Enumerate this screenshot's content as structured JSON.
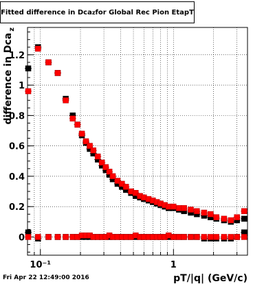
{
  "chart_data": {
    "type": "scatter",
    "title_main": "Fitted difference in Dca",
    "title_sub": "z",
    "title_tail": " for Global Rec Pion EtapT",
    "xlabel": "pT/|q| (GeV/c)",
    "ylabel": "difference in Dca",
    "ylabel_sub": "z",
    "x_scale": "log",
    "xlim": [
      0.08,
      3.6
    ],
    "ylim": [
      -0.12,
      1.38
    ],
    "grid": true,
    "x_major_ticks": [
      {
        "v": 0.1,
        "label": "10⁻¹"
      },
      {
        "v": 1,
        "label": "1"
      }
    ],
    "y_ticks": [
      {
        "v": 0,
        "label": "0"
      },
      {
        "v": 0.2,
        "label": "0.2"
      },
      {
        "v": 0.4,
        "label": "0.4"
      },
      {
        "v": 0.6,
        "label": "0.6"
      },
      {
        "v": 0.8,
        "label": "0.8"
      },
      {
        "v": 1,
        "label": "1"
      },
      {
        "v": 1.2,
        "label": "1.2"
      }
    ],
    "series": [
      {
        "color": "#000000",
        "marker": "square",
        "x": [
          0.081,
          0.096,
          0.115,
          0.135,
          0.155,
          0.175,
          0.19,
          0.205,
          0.22,
          0.235,
          0.25,
          0.27,
          0.29,
          0.31,
          0.33,
          0.35,
          0.38,
          0.41,
          0.44,
          0.48,
          0.52,
          0.56,
          0.6,
          0.65,
          0.7,
          0.75,
          0.8,
          0.86,
          0.92,
          1.0,
          1.1,
          1.2,
          1.35,
          1.5,
          1.7,
          1.9,
          2.1,
          2.4,
          2.7,
          3.0,
          3.4
        ],
        "y": [
          1.11,
          1.25,
          1.15,
          1.08,
          0.91,
          0.8,
          0.74,
          0.67,
          0.62,
          0.58,
          0.55,
          0.51,
          0.47,
          0.44,
          0.41,
          0.38,
          0.35,
          0.33,
          0.31,
          0.29,
          0.27,
          0.26,
          0.25,
          0.24,
          0.23,
          0.22,
          0.21,
          0.2,
          0.19,
          0.19,
          0.18,
          0.17,
          0.16,
          0.15,
          0.14,
          0.13,
          0.12,
          0.11,
          0.1,
          0.11,
          0.12
        ]
      },
      {
        "color": "#ff0000",
        "marker": "square",
        "x": [
          0.081,
          0.096,
          0.115,
          0.135,
          0.155,
          0.175,
          0.19,
          0.205,
          0.22,
          0.235,
          0.25,
          0.27,
          0.29,
          0.31,
          0.33,
          0.35,
          0.38,
          0.41,
          0.44,
          0.48,
          0.52,
          0.56,
          0.6,
          0.65,
          0.7,
          0.75,
          0.8,
          0.86,
          0.92,
          1.0,
          1.1,
          1.2,
          1.35,
          1.5,
          1.7,
          1.9,
          2.1,
          2.4,
          2.7,
          3.0,
          3.4
        ],
        "y": [
          0.96,
          1.24,
          1.15,
          1.08,
          0.9,
          0.78,
          0.74,
          0.68,
          0.63,
          0.6,
          0.57,
          0.53,
          0.49,
          0.46,
          0.43,
          0.4,
          0.37,
          0.35,
          0.33,
          0.3,
          0.29,
          0.27,
          0.26,
          0.25,
          0.24,
          0.23,
          0.22,
          0.21,
          0.2,
          0.2,
          0.19,
          0.19,
          0.18,
          0.17,
          0.16,
          0.15,
          0.13,
          0.12,
          0.11,
          0.13,
          0.17
        ]
      },
      {
        "color": "#000000",
        "marker": "square",
        "x": [
          0.081,
          0.096,
          0.115,
          0.135,
          0.155,
          0.175,
          0.19,
          0.205,
          0.22,
          0.235,
          0.25,
          0.27,
          0.29,
          0.31,
          0.33,
          0.35,
          0.38,
          0.41,
          0.44,
          0.48,
          0.52,
          0.56,
          0.6,
          0.65,
          0.7,
          0.75,
          0.8,
          0.86,
          0.92,
          1.0,
          1.1,
          1.2,
          1.35,
          1.5,
          1.7,
          1.9,
          2.1,
          2.4,
          2.7,
          3.0,
          3.4
        ],
        "y": [
          0.03,
          -0.01,
          0.0,
          0.0,
          0.0,
          0.0,
          0.0,
          0.0,
          0.0,
          0.0,
          0.0,
          0.0,
          0.0,
          0.0,
          0.0,
          0.0,
          0.0,
          0.0,
          0.0,
          0.0,
          0.0,
          0.0,
          0.0,
          0.0,
          0.0,
          0.0,
          0.0,
          0.0,
          0.0,
          0.0,
          0.0,
          0.0,
          0.0,
          0.0,
          -0.01,
          -0.01,
          -0.01,
          -0.01,
          -0.01,
          0.0,
          0.03
        ]
      },
      {
        "color": "#ff0000",
        "marker": "square",
        "x": [
          0.081,
          0.096,
          0.115,
          0.135,
          0.155,
          0.175,
          0.19,
          0.205,
          0.22,
          0.235,
          0.25,
          0.27,
          0.29,
          0.31,
          0.33,
          0.35,
          0.38,
          0.41,
          0.44,
          0.48,
          0.52,
          0.56,
          0.6,
          0.65,
          0.7,
          0.75,
          0.8,
          0.86,
          0.92,
          1.0,
          1.1,
          1.2,
          1.35,
          1.5,
          1.7,
          1.9,
          2.1,
          2.4,
          2.7,
          3.0,
          3.4
        ],
        "y": [
          0.0,
          0.0,
          0.0,
          0.0,
          0.0,
          0.0,
          0.0,
          0.01,
          0.01,
          0.01,
          0.0,
          0.0,
          0.0,
          0.0,
          0.01,
          0.0,
          0.0,
          0.0,
          0.0,
          0.0,
          0.01,
          0.0,
          0.0,
          0.0,
          0.0,
          0.0,
          0.0,
          0.0,
          0.01,
          0.0,
          0.0,
          0.0,
          0.0,
          0.0,
          0.0,
          0.0,
          0.0,
          0.0,
          0.0,
          0.0,
          0.0
        ]
      }
    ]
  },
  "footer": {
    "timestamp": "Fri Apr 22 12:49:00 2016"
  }
}
